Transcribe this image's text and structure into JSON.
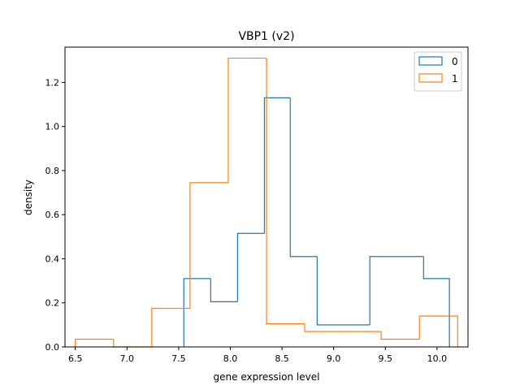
{
  "chart_data": {
    "type": "histogram",
    "title": "VBP1  (v2)",
    "xlabel": "gene expression level",
    "ylabel": "density",
    "xlim": [
      6.4,
      10.3
    ],
    "ylim": [
      0.0,
      1.36
    ],
    "xticks": [
      6.5,
      7.0,
      7.5,
      8.0,
      8.5,
      9.0,
      9.5,
      10.0
    ],
    "xtick_labels": [
      "6.5",
      "7.0",
      "7.5",
      "8.0",
      "8.5",
      "9.0",
      "9.5",
      "10.0"
    ],
    "yticks": [
      0.0,
      0.2,
      0.4,
      0.6,
      0.8,
      1.0,
      1.2
    ],
    "ytick_labels": [
      "0.0",
      "0.2",
      "0.4",
      "0.6",
      "0.8",
      "1.0",
      "1.2"
    ],
    "grid": false,
    "legend_position": "top-right",
    "series": [
      {
        "name": "0",
        "color": "#1f77b4",
        "bin_edges": [
          7.55,
          7.81,
          8.07,
          8.33,
          8.58,
          8.84,
          9.1,
          9.35,
          9.61,
          9.87,
          10.12
        ],
        "densities": [
          0.31,
          0.205,
          0.515,
          1.13,
          0.41,
          0.1,
          0.1,
          0.41,
          0.41,
          0.31
        ]
      },
      {
        "name": "1",
        "color": "#ff7f0e",
        "bin_edges": [
          6.5,
          6.87,
          7.24,
          7.61,
          7.98,
          8.35,
          8.72,
          9.09,
          9.46,
          9.83,
          10.2
        ],
        "densities": [
          0.035,
          0.0,
          0.175,
          0.745,
          1.31,
          0.105,
          0.07,
          0.07,
          0.035,
          0.14
        ]
      }
    ]
  }
}
